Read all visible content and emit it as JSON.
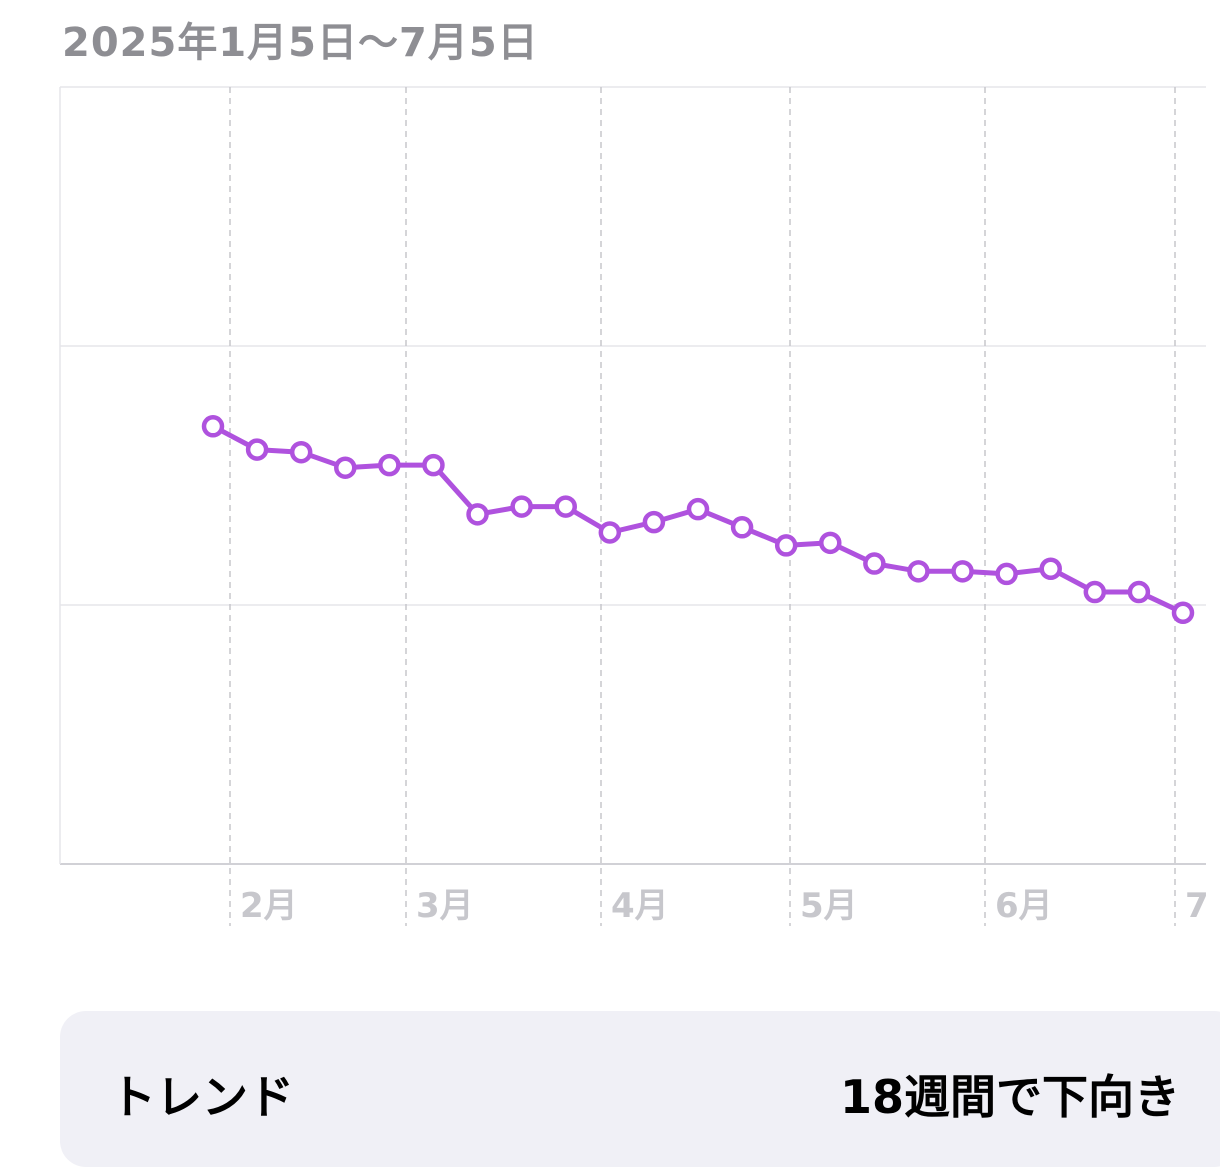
{
  "header": {
    "date_range": "2025年1月5日〜7月5日"
  },
  "chart_data": {
    "type": "line",
    "x_tick_labels": [
      "2月",
      "3月",
      "4月",
      "5月",
      "6月",
      "7"
    ],
    "grid": true,
    "series": [
      {
        "color": "#af52de",
        "values": [
          0.69,
          0.6,
          0.59,
          0.53,
          0.54,
          0.54,
          0.35,
          0.38,
          0.38,
          0.28,
          0.32,
          0.37,
          0.3,
          0.23,
          0.24,
          0.16,
          0.13,
          0.13,
          0.12,
          0.14,
          0.05,
          0.05,
          -0.03
        ]
      }
    ],
    "ylim": [
      -1,
      2
    ]
  },
  "trend": {
    "label": "トレンド",
    "value": "18週間で下向き"
  }
}
